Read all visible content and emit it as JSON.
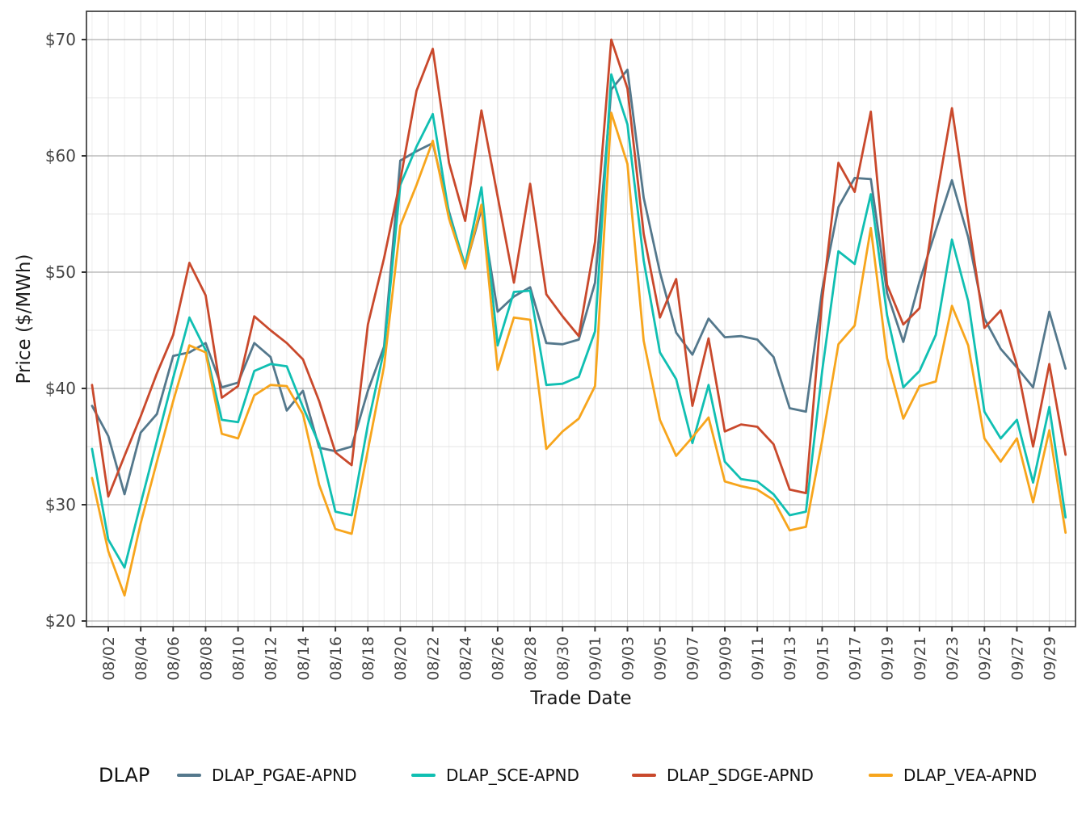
{
  "chart_data": {
    "type": "line",
    "title": "",
    "xlabel": "Trade Date",
    "ylabel": "Price ($/MWh)",
    "legend_title": "DLAP",
    "legend_position": "bottom",
    "grid": true,
    "ylim": [
      20,
      70
    ],
    "y_ticks": [
      20,
      30,
      40,
      50,
      60,
      70
    ],
    "y_tick_labels": [
      "$20",
      "$30",
      "$40",
      "$50",
      "$60",
      "$70"
    ],
    "x_tick_labels": [
      "08/02",
      "08/04",
      "08/06",
      "08/08",
      "08/10",
      "08/12",
      "08/14",
      "08/16",
      "08/18",
      "08/20",
      "08/22",
      "08/24",
      "08/26",
      "08/28",
      "08/30",
      "09/01",
      "09/03",
      "09/05",
      "09/07",
      "09/09",
      "09/11",
      "09/13",
      "09/15",
      "09/17",
      "09/19",
      "09/21",
      "09/23",
      "09/25",
      "09/27",
      "09/29"
    ],
    "x_dates": [
      "08/01",
      "08/02",
      "08/03",
      "08/04",
      "08/05",
      "08/06",
      "08/07",
      "08/08",
      "08/09",
      "08/10",
      "08/11",
      "08/12",
      "08/13",
      "08/14",
      "08/15",
      "08/16",
      "08/17",
      "08/18",
      "08/19",
      "08/20",
      "08/21",
      "08/22",
      "08/23",
      "08/24",
      "08/25",
      "08/26",
      "08/27",
      "08/28",
      "08/29",
      "08/30",
      "08/31",
      "09/01",
      "09/02",
      "09/03",
      "09/04",
      "09/05",
      "09/06",
      "09/07",
      "09/08",
      "09/09",
      "09/10",
      "09/11",
      "09/12",
      "09/13",
      "09/14",
      "09/15",
      "09/16",
      "09/17",
      "09/18",
      "09/19",
      "09/20",
      "09/21",
      "09/22",
      "09/23",
      "09/24",
      "09/25",
      "09/26",
      "09/27",
      "09/28",
      "09/29",
      "09/30"
    ],
    "series": [
      {
        "name": "DLAP_PGAE-APND",
        "color": "#54788C",
        "values": [
          38.5,
          35.9,
          30.9,
          36.2,
          37.8,
          42.8,
          43.1,
          43.9,
          40.1,
          40.5,
          43.9,
          42.7,
          38.1,
          39.8,
          34.9,
          34.6,
          35.0,
          39.8,
          43.6,
          59.6,
          60.4,
          61.1,
          55.2,
          50.4,
          55.4,
          46.6,
          47.9,
          48.7,
          43.9,
          43.8,
          44.2,
          49.1,
          65.7,
          67.4,
          56.4,
          50.0,
          44.8,
          42.9,
          46.0,
          44.4,
          44.5,
          44.2,
          42.7,
          38.3,
          38.0,
          48.5,
          55.6,
          58.1,
          58.0,
          48.2,
          44.0,
          49.2,
          53.6,
          57.9,
          53.0,
          46.0,
          43.4,
          41.8,
          40.1,
          46.6,
          41.7
        ]
      },
      {
        "name": "DLAP_SCE-APND",
        "color": "#10BFB2",
        "values": [
          34.8,
          27.0,
          24.6,
          30.1,
          35.5,
          40.9,
          46.1,
          43.3,
          37.3,
          37.1,
          41.5,
          42.1,
          41.9,
          38.4,
          35.2,
          29.4,
          29.1,
          36.9,
          43.3,
          57.5,
          60.8,
          63.6,
          55.0,
          50.6,
          57.3,
          43.7,
          48.3,
          48.4,
          40.3,
          40.4,
          41.0,
          44.9,
          67.0,
          62.7,
          51.0,
          43.1,
          40.8,
          35.3,
          40.3,
          33.7,
          32.2,
          32.0,
          30.9,
          29.1,
          29.4,
          41.5,
          51.8,
          50.7,
          56.7,
          46.3,
          40.1,
          41.5,
          44.6,
          52.8,
          47.5,
          38.0,
          35.7,
          37.3,
          31.9,
          38.4,
          28.9
        ]
      },
      {
        "name": "DLAP_SDGE-APND",
        "color": "#C9492C",
        "values": [
          40.3,
          30.7,
          34.2,
          37.6,
          41.3,
          44.6,
          50.8,
          48.0,
          39.2,
          40.2,
          46.2,
          45.0,
          43.9,
          42.5,
          38.9,
          34.5,
          33.4,
          45.5,
          51.2,
          57.9,
          65.6,
          69.2,
          59.4,
          54.4,
          63.9,
          56.5,
          49.1,
          57.6,
          48.1,
          46.2,
          44.5,
          52.6,
          70.0,
          65.8,
          53.3,
          46.1,
          49.4,
          38.5,
          44.3,
          36.3,
          36.9,
          36.7,
          35.2,
          31.3,
          31.0,
          47.6,
          59.4,
          56.9,
          63.8,
          48.9,
          45.5,
          46.9,
          56.0,
          64.1,
          54.5,
          45.2,
          46.7,
          42.0,
          35.0,
          42.1,
          34.3
        ]
      },
      {
        "name": "DLAP_VEA-APND",
        "color": "#F7A51C",
        "values": [
          32.3,
          26.0,
          22.2,
          28.4,
          33.7,
          38.9,
          43.7,
          43.1,
          36.1,
          35.7,
          39.4,
          40.3,
          40.2,
          37.8,
          31.7,
          27.9,
          27.5,
          34.7,
          41.9,
          54.0,
          57.5,
          61.3,
          54.6,
          50.3,
          55.8,
          41.6,
          46.1,
          45.9,
          34.8,
          36.3,
          37.4,
          40.2,
          63.7,
          59.3,
          44.1,
          37.3,
          34.2,
          35.8,
          37.5,
          32.0,
          31.6,
          31.3,
          30.4,
          27.8,
          28.1,
          35.5,
          43.8,
          45.4,
          53.8,
          42.6,
          37.4,
          40.2,
          40.6,
          47.1,
          43.7,
          35.7,
          33.7,
          35.7,
          30.2,
          36.4,
          27.6
        ]
      }
    ]
  }
}
